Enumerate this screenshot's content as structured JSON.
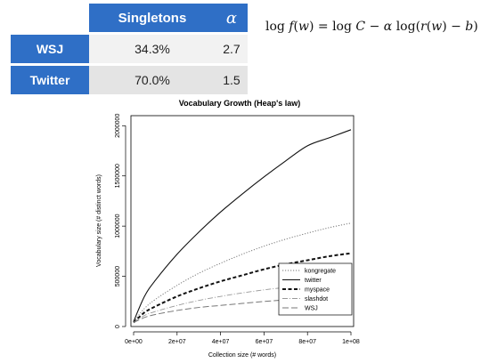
{
  "table": {
    "headers": [
      "",
      "Singletons",
      "α"
    ],
    "rows": [
      {
        "label": "WSJ",
        "singletons": "34.3%",
        "alpha": "2.7"
      },
      {
        "label": "Twitter",
        "singletons": "70.0%",
        "alpha": "1.5"
      }
    ]
  },
  "formula": {
    "log": "log",
    "f": "f",
    "w": "w",
    "eq": "=",
    "C": "C",
    "minus": "−",
    "alpha": "α",
    "r": "r",
    "b": "b"
  },
  "chart_data": {
    "type": "line",
    "title": "Vocabulary Growth (Heap's law)",
    "xlabel": "Collection size (# words)",
    "ylabel": "Vocabulary size (# distinct words)",
    "xlim": [
      0,
      100000000
    ],
    "ylim": [
      0,
      2100000
    ],
    "x_ticks": [
      0,
      20000000,
      40000000,
      60000000,
      80000000,
      100000000
    ],
    "x_tick_labels": [
      "0e+00",
      "2e+07",
      "4e+07",
      "6e+07",
      "8e+07",
      "1e+08"
    ],
    "y_ticks": [
      0,
      500000,
      1000000,
      1500000,
      2000000
    ],
    "y_tick_labels": [
      "0",
      "500000",
      "1000000",
      "1500000",
      "2000000"
    ],
    "grid": false,
    "legend_position": "bottom-right",
    "x": [
      0,
      5000000,
      10000000,
      20000000,
      30000000,
      40000000,
      50000000,
      60000000,
      70000000,
      80000000,
      90000000,
      100000000
    ],
    "series": [
      {
        "name": "kongregate",
        "style": "dotted",
        "color": "#777777",
        "values": [
          50000,
          180000,
          270000,
          410000,
          530000,
          630000,
          720000,
          800000,
          870000,
          930000,
          985000,
          1030000
        ]
      },
      {
        "name": "twitter",
        "style": "solid",
        "color": "#111111",
        "values": [
          50000,
          300000,
          460000,
          720000,
          940000,
          1140000,
          1320000,
          1490000,
          1650000,
          1800000,
          1880000,
          1960000
        ]
      },
      {
        "name": "myspace",
        "style": "thick-dashed",
        "color": "#111111",
        "values": [
          40000,
          140000,
          200000,
          300000,
          380000,
          450000,
          510000,
          570000,
          620000,
          660000,
          700000,
          730000
        ]
      },
      {
        "name": "slashdot",
        "style": "dash-dot",
        "color": "#999999",
        "values": [
          40000,
          110000,
          150000,
          210000,
          260000,
          300000,
          335000,
          365000,
          390000,
          415000,
          435000,
          440000
        ]
      },
      {
        "name": "WSJ",
        "style": "long-dashed",
        "color": "#777777",
        "values": [
          40000,
          90000,
          120000,
          160000,
          190000,
          210000,
          230000,
          250000,
          265000,
          280000,
          290000,
          300000
        ]
      }
    ]
  }
}
